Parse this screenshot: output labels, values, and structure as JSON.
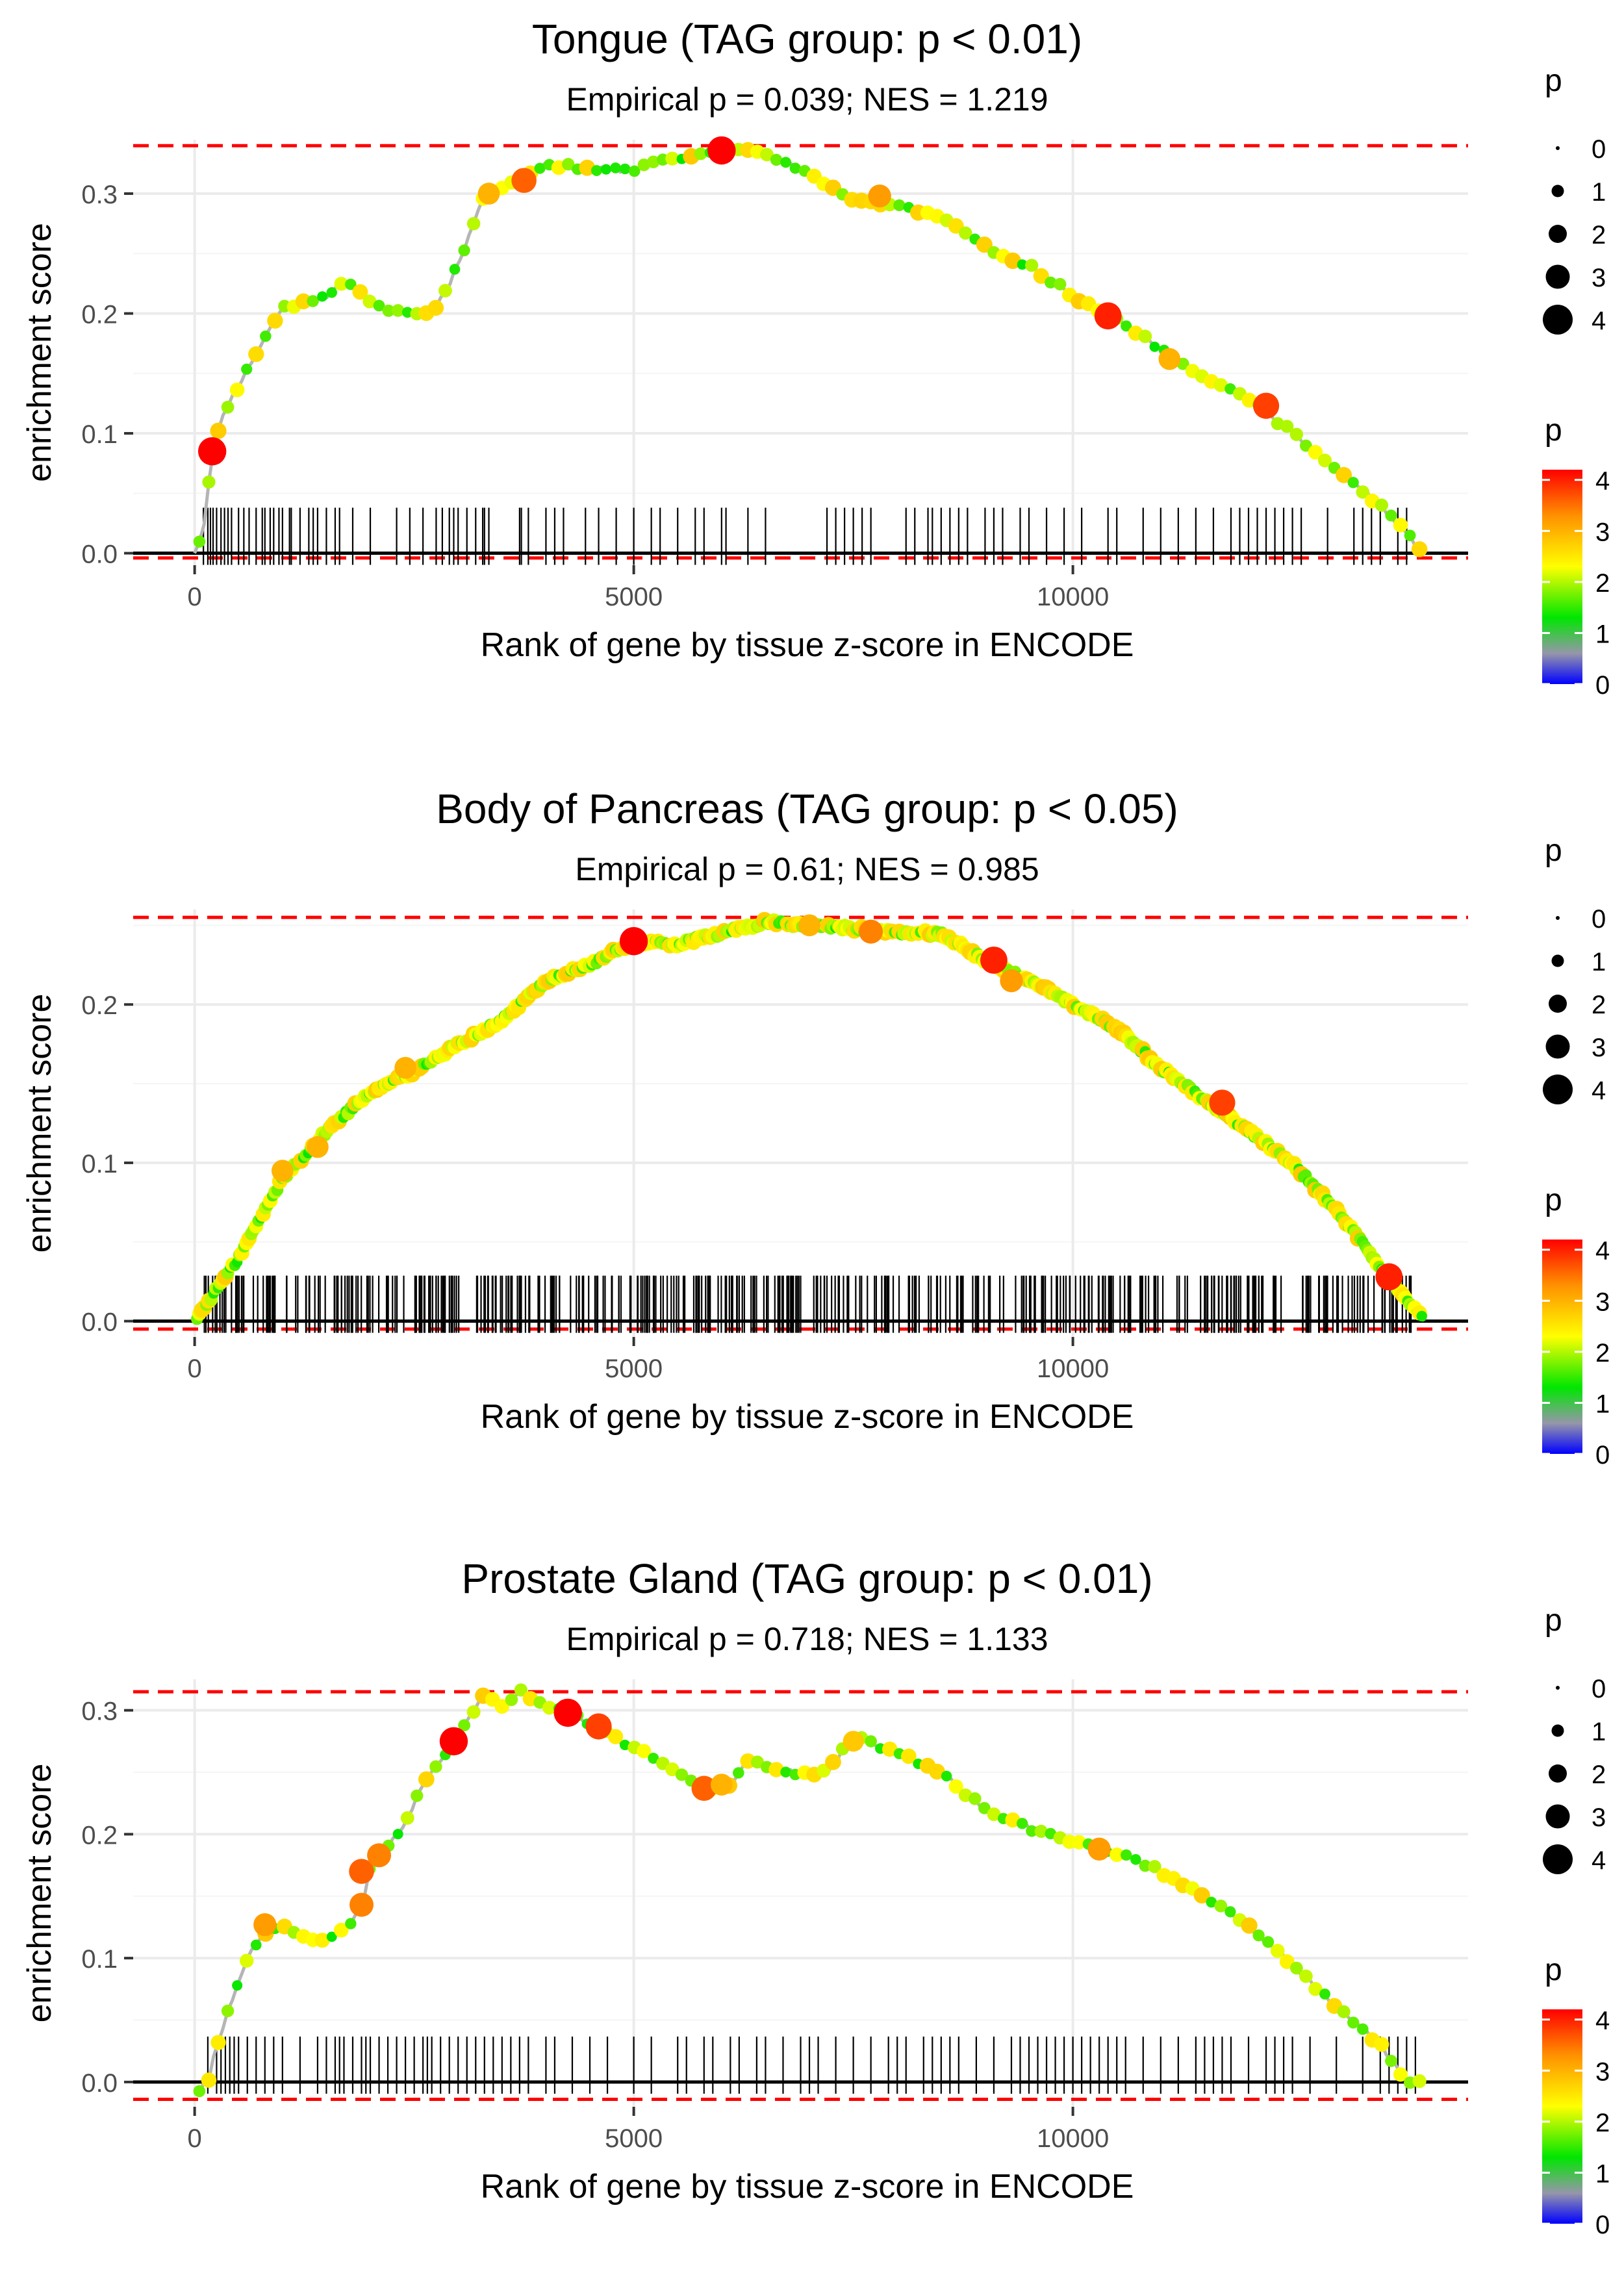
{
  "chart_data": [
    {
      "type": "scatter",
      "title": "Tongue (TAG group: p < 0.01)",
      "subtitle": "Empirical p = 0.039; NES = 1.219",
      "xlabel": "Rank of gene by tissue z-score in ENCODE",
      "ylabel": "enrichment score",
      "xlim": [
        -700,
        14500
      ],
      "ylim": [
        -0.01,
        0.345
      ],
      "xticks": [
        0,
        5000,
        10000
      ],
      "xtick_labels": [
        "0",
        "5000",
        "10000"
      ],
      "yticks": [
        0.0,
        0.1,
        0.2,
        0.3
      ],
      "ytick_labels": [
        "0.0",
        "0.1",
        "0.2",
        "0.3"
      ],
      "max_es": 0.34,
      "min_es": -0.004,
      "curve_knots": [
        [
          0,
          0
        ],
        [
          100,
          0.02
        ],
        [
          200,
          0.085
        ],
        [
          350,
          0.12
        ],
        [
          500,
          0.14
        ],
        [
          800,
          0.18
        ],
        [
          1000,
          0.205
        ],
        [
          1300,
          0.21
        ],
        [
          1500,
          0.215
        ],
        [
          1700,
          0.225
        ],
        [
          1900,
          0.218
        ],
        [
          2100,
          0.205
        ],
        [
          2400,
          0.2
        ],
        [
          2700,
          0.2
        ],
        [
          2900,
          0.225
        ],
        [
          3100,
          0.26
        ],
        [
          3300,
          0.3
        ],
        [
          3600,
          0.31
        ],
        [
          4000,
          0.325
        ],
        [
          4500,
          0.32
        ],
        [
          5000,
          0.32
        ],
        [
          5500,
          0.33
        ],
        [
          6000,
          0.336
        ],
        [
          6500,
          0.335
        ],
        [
          7000,
          0.315
        ],
        [
          7500,
          0.295
        ],
        [
          8000,
          0.29
        ],
        [
          8500,
          0.28
        ],
        [
          9000,
          0.255
        ],
        [
          9500,
          0.24
        ],
        [
          10000,
          0.215
        ],
        [
          10500,
          0.195
        ],
        [
          11000,
          0.17
        ],
        [
          11500,
          0.145
        ],
        [
          12000,
          0.13
        ],
        [
          12500,
          0.1
        ],
        [
          13000,
          0.07
        ],
        [
          13500,
          0.04
        ],
        [
          14000,
          0.0
        ]
      ],
      "gene_ranks": [
        100,
        150,
        180,
        210,
        250,
        300,
        340,
        380,
        420,
        500,
        560,
        620,
        700,
        770,
        800,
        860,
        900,
        960,
        1000,
        1080,
        1100,
        1200,
        1300,
        1350,
        1400,
        1500,
        1600,
        1650,
        1800,
        2000,
        2300,
        2450,
        2600,
        2750,
        2820,
        2900,
        2950,
        3000,
        3100,
        3200,
        3280,
        3300,
        3350,
        3700,
        3720,
        3800,
        4000,
        4100,
        4200,
        4450,
        4600,
        4800,
        5000,
        5200,
        5300,
        5500,
        5700,
        5800,
        6000,
        6050,
        6300,
        6500,
        7200,
        7300,
        7400,
        7500,
        7600,
        7700,
        8100,
        8200,
        8350,
        8400,
        8500,
        8600,
        8700,
        8800,
        9000,
        9100,
        9200,
        9400,
        9500,
        9700,
        9900,
        10100,
        10400,
        10500,
        10800,
        11000,
        11200,
        11400,
        11600,
        11800,
        11900,
        12000,
        12100,
        12200,
        12300,
        12400,
        12500,
        12600,
        12900,
        13200,
        13300,
        13400,
        13500,
        13700,
        13800
      ],
      "highlights": [
        [
          200,
          0.085,
          4.2
        ],
        [
          6000,
          0.336,
          4.2
        ],
        [
          10400,
          0.198,
          4.0
        ],
        [
          12200,
          0.123,
          3.8
        ],
        [
          3750,
          0.311,
          3.6
        ],
        [
          7800,
          0.298,
          3.2
        ],
        [
          3350,
          0.3,
          3.0
        ],
        [
          11100,
          0.162,
          3.0
        ]
      ],
      "legend_size": {
        "title": "p",
        "labels": [
          "0",
          "1",
          "2",
          "3",
          "4"
        ]
      },
      "legend_color": {
        "title": "p",
        "labels": [
          "0",
          "1",
          "2",
          "3",
          "4"
        ]
      }
    },
    {
      "type": "scatter",
      "title": "Body of Pancreas (TAG group: p < 0.05)",
      "subtitle": "Empirical p = 0.61; NES = 0.985",
      "xlabel": "Rank of gene by tissue z-score in ENCODE",
      "ylabel": "enrichment score",
      "xlim": [
        -700,
        14500
      ],
      "ylim": [
        -0.01,
        0.26
      ],
      "xticks": [
        0,
        5000,
        10000
      ],
      "xtick_labels": [
        "0",
        "5000",
        "10000"
      ],
      "yticks": [
        0.0,
        0.1,
        0.2
      ],
      "ytick_labels": [
        "0.0",
        "0.1",
        "0.2"
      ],
      "max_es": 0.255,
      "min_es": -0.005,
      "curve_knots": [
        [
          0,
          0
        ],
        [
          500,
          0.04
        ],
        [
          1000,
          0.09
        ],
        [
          1500,
          0.12
        ],
        [
          2000,
          0.145
        ],
        [
          2500,
          0.158
        ],
        [
          3000,
          0.175
        ],
        [
          3500,
          0.19
        ],
        [
          4000,
          0.215
        ],
        [
          4500,
          0.225
        ],
        [
          5000,
          0.24
        ],
        [
          5500,
          0.238
        ],
        [
          6000,
          0.245
        ],
        [
          6500,
          0.252
        ],
        [
          7000,
          0.25
        ],
        [
          7500,
          0.248
        ],
        [
          8000,
          0.245
        ],
        [
          8500,
          0.245
        ],
        [
          9000,
          0.228
        ],
        [
          9500,
          0.215
        ],
        [
          10000,
          0.2
        ],
        [
          10500,
          0.185
        ],
        [
          11000,
          0.16
        ],
        [
          11500,
          0.14
        ],
        [
          12000,
          0.12
        ],
        [
          12500,
          0.1
        ],
        [
          13000,
          0.07
        ],
        [
          13500,
          0.035
        ],
        [
          14000,
          0.0
        ]
      ],
      "gene_ranks": [],
      "gene_ranks_dense": {
        "start": 100,
        "end": 13900,
        "count": 440,
        "seed": 7
      },
      "highlights": [
        [
          5000,
          0.24,
          4.2
        ],
        [
          9100,
          0.228,
          4.0
        ],
        [
          13600,
          0.028,
          4.0
        ],
        [
          11700,
          0.138,
          3.8
        ],
        [
          7700,
          0.246,
          3.4
        ],
        [
          9300,
          0.215,
          3.2
        ],
        [
          1000,
          0.095,
          3.0
        ],
        [
          1400,
          0.11,
          3.0
        ],
        [
          2400,
          0.16,
          3.0
        ],
        [
          7000,
          0.25,
          3.0
        ]
      ],
      "legend_size": {
        "title": "p",
        "labels": [
          "0",
          "1",
          "2",
          "3",
          "4"
        ]
      },
      "legend_color": {
        "title": "p",
        "labels": [
          "0",
          "1",
          "2",
          "3",
          "4"
        ]
      }
    },
    {
      "type": "scatter",
      "title": "Prostate Gland (TAG group: p < 0.01)",
      "subtitle": "Empirical p = 0.718; NES = 1.133",
      "xlabel": "Rank of gene by tissue z-score in ENCODE",
      "ylabel": "enrichment score",
      "xlim": [
        -700,
        14500
      ],
      "ylim": [
        -0.02,
        0.325
      ],
      "xticks": [
        0,
        5000,
        10000
      ],
      "xtick_labels": [
        "0",
        "5000",
        "10000"
      ],
      "yticks": [
        0.0,
        0.1,
        0.2,
        0.3
      ],
      "ytick_labels": [
        "0.0",
        "0.1",
        "0.2",
        "0.3"
      ],
      "max_es": 0.315,
      "min_es": -0.014,
      "curve_knots": [
        [
          0,
          -0.01
        ],
        [
          150,
          0.0
        ],
        [
          250,
          0.03
        ],
        [
          400,
          0.06
        ],
        [
          600,
          0.1
        ],
        [
          800,
          0.12
        ],
        [
          1000,
          0.125
        ],
        [
          1200,
          0.12
        ],
        [
          1400,
          0.11
        ],
        [
          1600,
          0.12
        ],
        [
          1800,
          0.13
        ],
        [
          1900,
          0.14
        ],
        [
          2000,
          0.175
        ],
        [
          2200,
          0.19
        ],
        [
          2400,
          0.21
        ],
        [
          2600,
          0.24
        ],
        [
          2800,
          0.26
        ],
        [
          3000,
          0.28
        ],
        [
          3300,
          0.315
        ],
        [
          3500,
          0.305
        ],
        [
          3700,
          0.315
        ],
        [
          4000,
          0.305
        ],
        [
          4300,
          0.298
        ],
        [
          4600,
          0.285
        ],
        [
          5000,
          0.27
        ],
        [
          5500,
          0.25
        ],
        [
          5800,
          0.237
        ],
        [
          6100,
          0.24
        ],
        [
          6300,
          0.26
        ],
        [
          6800,
          0.25
        ],
        [
          7200,
          0.25
        ],
        [
          7500,
          0.28
        ],
        [
          8000,
          0.265
        ],
        [
          8500,
          0.25
        ],
        [
          9000,
          0.22
        ],
        [
          9500,
          0.205
        ],
        [
          10000,
          0.195
        ],
        [
          10500,
          0.185
        ],
        [
          11000,
          0.17
        ],
        [
          11500,
          0.15
        ],
        [
          12000,
          0.125
        ],
        [
          12500,
          0.095
        ],
        [
          13000,
          0.06
        ],
        [
          13500,
          0.03
        ],
        [
          13800,
          0.0
        ],
        [
          14000,
          0.0
        ]
      ],
      "gene_ranks": [
        150,
        250,
        300,
        350,
        400,
        450,
        500,
        600,
        700,
        800,
        900,
        1000,
        1200,
        1400,
        1500,
        1600,
        1650,
        1700,
        1800,
        1900,
        1950,
        2000,
        2100,
        2200,
        2300,
        2400,
        2500,
        2600,
        2650,
        2700,
        2800,
        2900,
        3000,
        3100,
        3200,
        3300,
        3400,
        3500,
        3600,
        3700,
        3800,
        4000,
        4100,
        4300,
        4500,
        4700,
        5000,
        5200,
        5500,
        5600,
        5800,
        5900,
        6100,
        6200,
        6400,
        6500,
        6700,
        6900,
        7000,
        7100,
        7300,
        7500,
        7700,
        7900,
        8000,
        8100,
        8300,
        8400,
        8500,
        8600,
        8700,
        8900,
        9100,
        9300,
        9400,
        9500,
        9600,
        9700,
        9800,
        9900,
        10000,
        10100,
        10200,
        10300,
        10400,
        10500,
        10600,
        10800,
        11000,
        11200,
        11400,
        11500,
        11600,
        11700,
        11800,
        12000,
        12200,
        12300,
        12400,
        12500,
        12700,
        13000,
        13300,
        13500,
        13600,
        13700,
        13800,
        13900
      ],
      "highlights": [
        [
          2950,
          0.275,
          4.2
        ],
        [
          4250,
          0.298,
          4.2
        ],
        [
          4600,
          0.287,
          3.8
        ],
        [
          5800,
          0.237,
          3.6
        ],
        [
          1900,
          0.17,
          3.6
        ],
        [
          1900,
          0.143,
          3.4
        ],
        [
          2100,
          0.183,
          3.4
        ],
        [
          800,
          0.127,
          3.2
        ],
        [
          6000,
          0.24,
          3.0
        ],
        [
          10300,
          0.188,
          3.2
        ],
        [
          7500,
          0.275,
          2.8
        ]
      ],
      "legend_size": {
        "title": "p",
        "labels": [
          "0",
          "1",
          "2",
          "3",
          "4"
        ]
      },
      "legend_color": {
        "title": "p",
        "labels": [
          "0",
          "1",
          "2",
          "3",
          "4"
        ]
      }
    }
  ]
}
